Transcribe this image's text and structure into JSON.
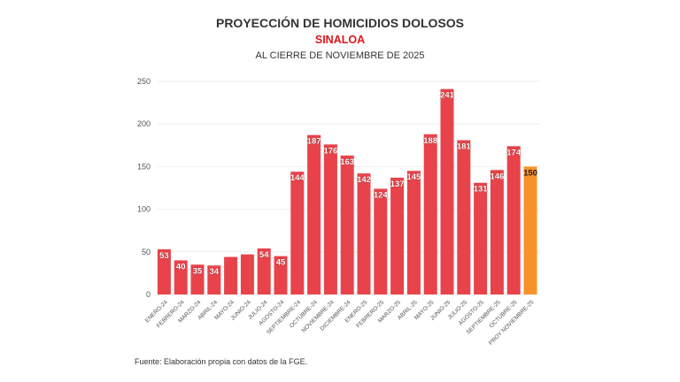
{
  "chart_data": {
    "type": "bar",
    "title": "PROYECCIÓN DE HOMICIDIOS DOLOSOS",
    "subtitle": "SINALOA",
    "subtitle2": "AL CIERRE DE NOVIEMBRE DE 2025",
    "xlabel": "",
    "ylabel": "",
    "ylim": [
      0,
      250
    ],
    "yticks": [
      0,
      50,
      100,
      150,
      200,
      250
    ],
    "grid": true,
    "categories": [
      "ENERO-24",
      "FEBRERO-24",
      "MARZO-24",
      "ABRIL-24",
      "MAYO-24",
      "JUNIO-24",
      "JULIO-24",
      "AGOSTO-24",
      "SEPTIEMBRE-24",
      "OCTUBRE-24",
      "NOVIEMBRE-24",
      "DICIEMBRE-24",
      "ENERO-25",
      "FEBRERO-25",
      "MARZO-25",
      "ABRIL-25",
      "MAYO-25",
      "JUNIO-25",
      "JULIO-25",
      "AGOSTO-25",
      "SEPTIEMBRE-25",
      "OCTUBRE-25",
      "PROY NOVIEMBRE-25"
    ],
    "values": [
      53,
      40,
      35,
      34,
      44,
      47,
      54,
      45,
      144,
      187,
      176,
      163,
      142,
      124,
      137,
      145,
      188,
      241,
      181,
      131,
      146,
      174,
      150
    ],
    "data_labels": [
      "53",
      "40",
      "35",
      "34",
      "",
      "",
      "54",
      "45",
      "144",
      "187",
      "176",
      "163",
      "142",
      "124",
      "137",
      "145",
      "188",
      "241",
      "181",
      "131",
      "146",
      "174",
      "150"
    ],
    "colors": {
      "actual": "#e8434a",
      "projection": "#f7922a"
    },
    "source": "Fuente: Elaboración propia con datos de la FGE."
  }
}
